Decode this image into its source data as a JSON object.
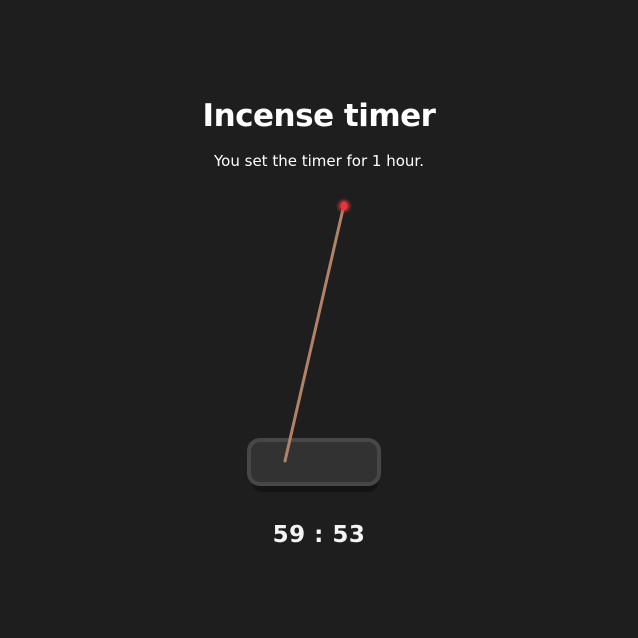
{
  "app": {
    "title": "Incense timer",
    "subtitle": "You set the timer for 1 hour."
  },
  "timer": {
    "display": "59 : 53"
  },
  "colors": {
    "background": "#1e1e1e",
    "stick": "#b08268",
    "ember": "#e8343c",
    "holder": "#323232",
    "holder_border": "#4a4a4a",
    "holder_shadow": "#141414"
  },
  "icons": {
    "incense": "incense-stick-icon",
    "holder": "incense-holder-icon",
    "ember": "burning-ember-icon"
  }
}
